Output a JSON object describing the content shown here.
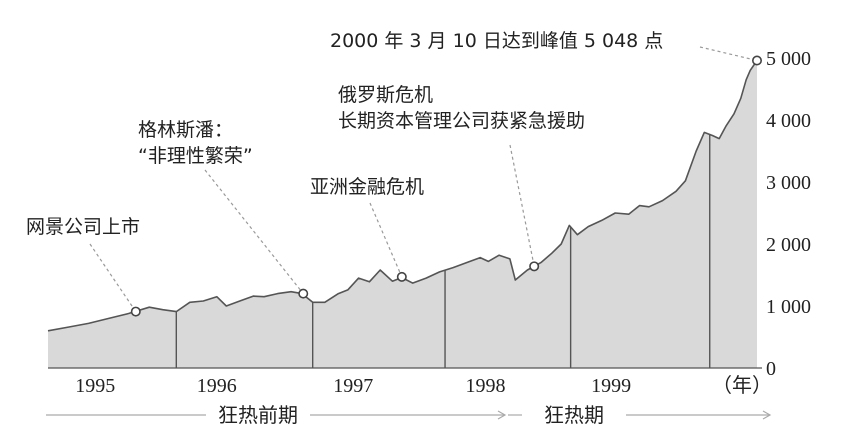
{
  "chart_data": {
    "type": "area",
    "x_unit": "（年）",
    "x_ticks": [
      "1995",
      "1996",
      "1997",
      "1998",
      "1999"
    ],
    "y_ticks": [
      "0",
      "1 000",
      "2 000",
      "3 000",
      "4 000",
      "5 000"
    ],
    "ylim": [
      0,
      5200
    ],
    "xlim": [
      1995.0,
      2000.25
    ],
    "grid": false,
    "colors": {
      "area_fill": "#d9d9d9",
      "line": "#555555",
      "text": "#222222",
      "dashed": "#999999"
    },
    "series": [
      {
        "points": [
          [
            1995.0,
            600
          ],
          [
            1995.15,
            660
          ],
          [
            1995.3,
            720
          ],
          [
            1995.45,
            800
          ],
          [
            1995.6,
            880
          ],
          [
            1995.75,
            980
          ],
          [
            1995.85,
            940
          ],
          [
            1995.95,
            910
          ],
          [
            1996.05,
            1060
          ],
          [
            1996.15,
            1080
          ],
          [
            1996.25,
            1150
          ],
          [
            1996.32,
            1000
          ],
          [
            1996.42,
            1080
          ],
          [
            1996.52,
            1160
          ],
          [
            1996.6,
            1150
          ],
          [
            1996.7,
            1200
          ],
          [
            1996.8,
            1230
          ],
          [
            1996.88,
            1200
          ],
          [
            1996.96,
            1060
          ],
          [
            1997.05,
            1060
          ],
          [
            1997.15,
            1200
          ],
          [
            1997.22,
            1260
          ],
          [
            1997.3,
            1450
          ],
          [
            1997.38,
            1390
          ],
          [
            1997.46,
            1580
          ],
          [
            1997.55,
            1400
          ],
          [
            1997.62,
            1460
          ],
          [
            1997.7,
            1370
          ],
          [
            1997.8,
            1450
          ],
          [
            1997.9,
            1550
          ],
          [
            1998.0,
            1620
          ],
          [
            1998.1,
            1700
          ],
          [
            1998.2,
            1780
          ],
          [
            1998.26,
            1720
          ],
          [
            1998.34,
            1820
          ],
          [
            1998.42,
            1760
          ],
          [
            1998.46,
            1420
          ],
          [
            1998.55,
            1580
          ],
          [
            1998.65,
            1700
          ],
          [
            1998.73,
            1850
          ],
          [
            1998.8,
            2000
          ],
          [
            1998.86,
            2300
          ],
          [
            1998.92,
            2150
          ],
          [
            1999.0,
            2280
          ],
          [
            1999.1,
            2380
          ],
          [
            1999.2,
            2500
          ],
          [
            1999.3,
            2480
          ],
          [
            1999.38,
            2620
          ],
          [
            1999.45,
            2600
          ],
          [
            1999.55,
            2700
          ],
          [
            1999.65,
            2850
          ],
          [
            1999.72,
            3020
          ],
          [
            1999.8,
            3500
          ],
          [
            1999.86,
            3800
          ],
          [
            1999.92,
            3750
          ],
          [
            1999.97,
            3700
          ],
          [
            2000.02,
            3900
          ],
          [
            2000.08,
            4100
          ],
          [
            2000.13,
            4350
          ],
          [
            2000.17,
            4650
          ],
          [
            2000.2,
            4800
          ],
          [
            2000.25,
            4960
          ]
        ]
      }
    ],
    "dividers_x": [
      1995.95,
      1996.96,
      1997.94,
      1998.87,
      1999.9
    ],
    "events": [
      {
        "x": 1995.65,
        "y": 910,
        "label_lines": [
          "网景公司上市"
        ]
      },
      {
        "x": 1996.89,
        "y": 1200,
        "label_lines": [
          "格林斯潘：",
          "“非理性繁荣”"
        ]
      },
      {
        "x": 1997.62,
        "y": 1470,
        "label_lines": [
          "亚洲金融危机"
        ]
      },
      {
        "x": 1998.6,
        "y": 1640,
        "label_lines": [
          "俄罗斯危机",
          "长期资本管理公司获紧急援助"
        ]
      },
      {
        "x": 2000.25,
        "y": 4960,
        "label_lines": [
          "2000 年 3 月 10 日达到峰值 5 048 点"
        ]
      }
    ],
    "phases": [
      {
        "label": "狂热前期",
        "from": 1995.0,
        "to": 1998.6
      },
      {
        "label": "狂热期",
        "from": 1998.6,
        "to": 2000.25
      }
    ]
  }
}
